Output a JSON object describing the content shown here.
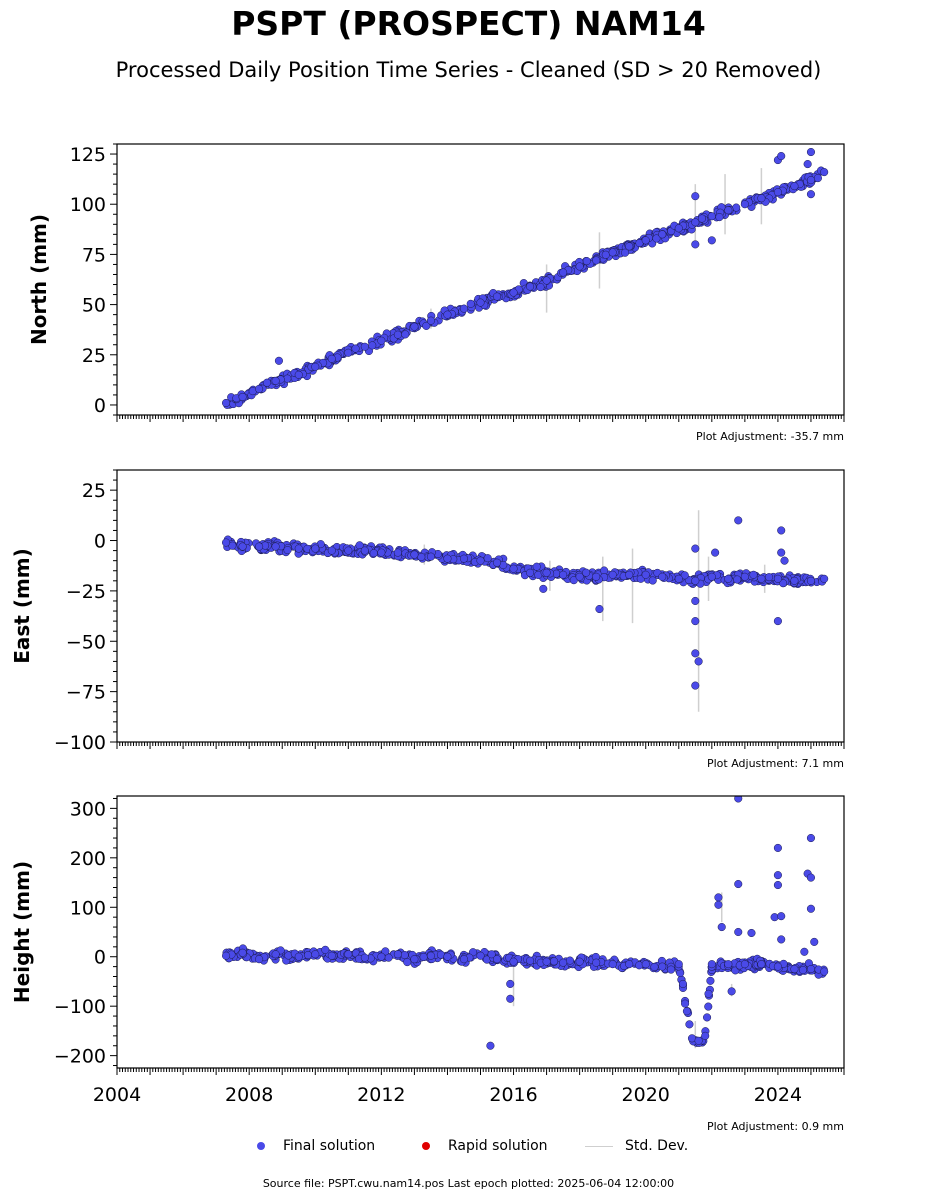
{
  "title": "PSPT (PROSPECT) NAM14",
  "subtitle": "Processed Daily Position Time Series - Cleaned (SD > 20 Removed)",
  "legend": {
    "final": "Final solution",
    "rapid": "Rapid solution",
    "std": "Std. Dev."
  },
  "footer": "Source file: PSPT.cwu.nam14.pos  Last epoch plotted: 2025-06-04 12:00:00",
  "colors": {
    "final": "#4a4ae8",
    "rapid": "#e00000",
    "std": "#cfcfcf"
  },
  "chart_data": [
    {
      "type": "scatter",
      "ylabel": "North (mm)",
      "xlim": [
        2004,
        2026
      ],
      "ylim": [
        -5,
        130
      ],
      "yticks": [
        0,
        25,
        50,
        75,
        100,
        125
      ],
      "adjustment": "Plot Adjustment: -35.7 mm",
      "show_x_labels": false,
      "series": [
        {
          "name": "Final solution",
          "x": [
            2007.3,
            2007.8,
            2008.3,
            2008.8,
            2009.5,
            2010.0,
            2010.5,
            2011.0,
            2011.5,
            2012.0,
            2012.5,
            2013.0,
            2013.5,
            2014.0,
            2014.5,
            2015.0,
            2015.5,
            2016.0,
            2016.5,
            2017.0,
            2017.5,
            2018.0,
            2018.5,
            2019.0,
            2019.5,
            2020.0,
            2020.5,
            2021.0,
            2021.5,
            2022.0,
            2022.5,
            2023.0,
            2023.5,
            2024.0,
            2024.5,
            2025.0,
            2025.4,
            2008.9,
            2021.5,
            2021.5,
            2022.0,
            2024.0,
            2024.1,
            2025.0,
            2025.0,
            2024.9
          ],
          "y": [
            1,
            4,
            8,
            12,
            15,
            19,
            23,
            26,
            29,
            32,
            35,
            39,
            42,
            45,
            48,
            51,
            54,
            56,
            59,
            62,
            66,
            69,
            72,
            76,
            79,
            82,
            85,
            88,
            91,
            94,
            97,
            100,
            103,
            106,
            109,
            112,
            116,
            22,
            104,
            80,
            82,
            122,
            124,
            126,
            105,
            120
          ]
        }
      ],
      "std_bars": [
        {
          "x": 2013.5,
          "low": 38,
          "high": 48
        },
        {
          "x": 2017.0,
          "low": 46,
          "high": 70
        },
        {
          "x": 2018.6,
          "low": 58,
          "high": 86
        },
        {
          "x": 2021.5,
          "low": 82,
          "high": 110
        },
        {
          "x": 2022.4,
          "low": 85,
          "high": 115
        },
        {
          "x": 2023.5,
          "low": 90,
          "high": 118
        }
      ]
    },
    {
      "type": "scatter",
      "ylabel": "East (mm)",
      "xlim": [
        2004,
        2026
      ],
      "ylim": [
        -100,
        35
      ],
      "yticks": [
        -100,
        -75,
        -50,
        -25,
        0,
        25
      ],
      "adjustment": "Plot Adjustment: 7.1 mm",
      "show_x_labels": false,
      "series": [
        {
          "name": "Final solution",
          "x": [
            2007.3,
            2007.8,
            2008.3,
            2008.8,
            2009.5,
            2010.0,
            2010.5,
            2011.0,
            2011.5,
            2012.0,
            2012.5,
            2013.0,
            2013.5,
            2014.0,
            2014.5,
            2015.0,
            2015.5,
            2016.0,
            2016.5,
            2017.0,
            2017.5,
            2018.0,
            2018.5,
            2019.0,
            2019.5,
            2020.0,
            2020.5,
            2021.0,
            2021.5,
            2022.0,
            2022.5,
            2023.0,
            2023.5,
            2024.0,
            2024.5,
            2025.0,
            2025.4,
            2018.6,
            2021.5,
            2021.5,
            2021.5,
            2021.5,
            2021.6,
            2021.5,
            2022.1,
            2022.8,
            2024.0,
            2024.1,
            2024.1,
            2024.2,
            2016.9
          ],
          "y": [
            -1,
            -3,
            -3,
            -3,
            -4,
            -4,
            -5,
            -5,
            -5,
            -6,
            -6,
            -7,
            -8,
            -9,
            -9,
            -10,
            -11,
            -14,
            -16,
            -16,
            -17,
            -18,
            -18,
            -17,
            -17,
            -17,
            -18,
            -19,
            -20,
            -18,
            -19,
            -18,
            -19,
            -19,
            -20,
            -20,
            -19,
            -34,
            -4,
            -40,
            -56,
            -72,
            -60,
            -30,
            -6,
            10,
            -40,
            5,
            -6,
            -10,
            -24
          ]
        }
      ],
      "std_bars": [
        {
          "x": 2013.3,
          "low": -12,
          "high": -2
        },
        {
          "x": 2017.1,
          "low": -25,
          "high": -10
        },
        {
          "x": 2018.7,
          "low": -40,
          "high": -8
        },
        {
          "x": 2019.6,
          "low": -41,
          "high": -4
        },
        {
          "x": 2021.6,
          "low": -85,
          "high": 15
        },
        {
          "x": 2021.9,
          "low": -30,
          "high": -8
        },
        {
          "x": 2023.6,
          "low": -26,
          "high": -12
        }
      ]
    },
    {
      "type": "scatter",
      "ylabel": "Height (mm)",
      "xlim": [
        2004,
        2026
      ],
      "ylim": [
        -225,
        325
      ],
      "yticks": [
        -200,
        -100,
        0,
        100,
        200,
        300
      ],
      "xticks": [
        2004,
        2008,
        2012,
        2016,
        2020,
        2024
      ],
      "adjustment": "Plot Adjustment: 0.9 mm",
      "show_x_labels": true,
      "series": [
        {
          "name": "Final solution",
          "x": [
            2007.3,
            2007.8,
            2008.3,
            2008.8,
            2009.5,
            2010.0,
            2010.5,
            2011.0,
            2011.5,
            2012.0,
            2012.5,
            2013.0,
            2013.5,
            2014.0,
            2014.5,
            2015.0,
            2015.5,
            2016.0,
            2016.5,
            2017.0,
            2017.5,
            2018.0,
            2018.5,
            2019.0,
            2019.5,
            2020.0,
            2020.5,
            2021.0,
            2021.4,
            2021.6,
            2021.8,
            2022.0,
            2022.5,
            2023.0,
            2023.5,
            2024.0,
            2024.5,
            2025.0,
            2025.4,
            2015.3,
            2015.9,
            2015.9,
            2021.9,
            2022.0,
            2022.2,
            2022.2,
            2022.3,
            2022.6,
            2022.8,
            2022.8,
            2022.8,
            2023.2,
            2023.9,
            2024.0,
            2024.0,
            2024.0,
            2024.1,
            2024.1,
            2024.9,
            2025.0,
            2025.0,
            2025.0,
            2025.1,
            2024.8
          ],
          "y": [
            2,
            8,
            -5,
            5,
            0,
            5,
            2,
            5,
            -2,
            0,
            5,
            -5,
            2,
            0,
            -5,
            2,
            -5,
            -10,
            -8,
            -10,
            -12,
            -10,
            -12,
            -15,
            -15,
            -15,
            -20,
            -15,
            -165,
            -170,
            -160,
            -20,
            -15,
            -15,
            -15,
            -20,
            -25,
            -25,
            -30,
            -180,
            -55,
            -85,
            -75,
            -15,
            120,
            105,
            60,
            -70,
            50,
            147,
            320,
            48,
            80,
            165,
            220,
            145,
            35,
            82,
            168,
            240,
            160,
            97,
            30,
            10
          ]
        }
      ],
      "std_bars": [
        {
          "x": 2016.0,
          "low": -100,
          "high": 0
        },
        {
          "x": 2021.5,
          "low": -185,
          "high": -130
        },
        {
          "x": 2022.3,
          "low": 70,
          "high": 130
        },
        {
          "x": 2022.6,
          "low": -80,
          "high": -55
        }
      ]
    }
  ]
}
